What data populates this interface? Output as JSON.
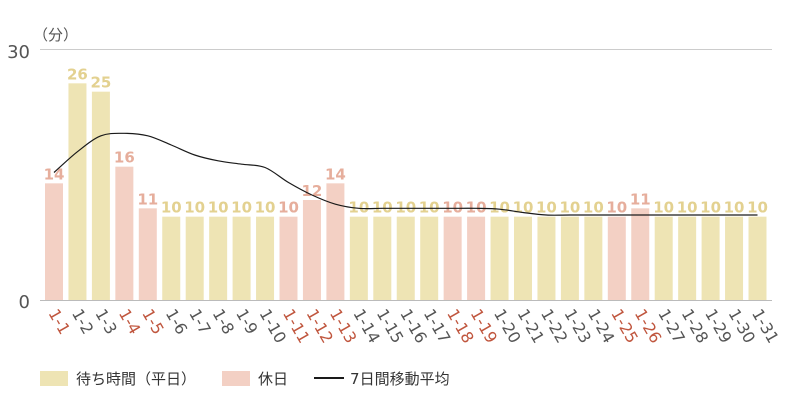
{
  "chart_data": {
    "type": "bar",
    "unit_label": "（分）",
    "ylim": [
      0,
      30
    ],
    "yticks": [
      0,
      30
    ],
    "grid": true,
    "categories": [
      "1-1",
      "1-2",
      "1-3",
      "1-4",
      "1-5",
      "1-6",
      "1-7",
      "1-8",
      "1-9",
      "1-10",
      "1-11",
      "1-12",
      "1-13",
      "1-14",
      "1-15",
      "1-16",
      "1-17",
      "1-18",
      "1-19",
      "1-20",
      "1-21",
      "1-22",
      "1-23",
      "1-24",
      "1-25",
      "1-26",
      "1-27",
      "1-28",
      "1-29",
      "1-30",
      "1-31"
    ],
    "values": [
      14,
      26,
      25,
      16,
      11,
      10,
      10,
      10,
      10,
      10,
      10,
      12,
      14,
      10,
      10,
      10,
      10,
      10,
      10,
      10,
      10,
      10,
      10,
      10,
      10,
      11,
      10,
      10,
      10,
      10,
      10
    ],
    "holiday": [
      true,
      false,
      false,
      true,
      true,
      false,
      false,
      false,
      false,
      false,
      true,
      true,
      true,
      false,
      false,
      false,
      false,
      true,
      true,
      false,
      false,
      false,
      false,
      false,
      true,
      true,
      false,
      false,
      false,
      false,
      false
    ],
    "moving_average": [
      15.3,
      17.8,
      19.7,
      20.0,
      19.7,
      18.6,
      17.4,
      16.7,
      16.3,
      15.9,
      14.1,
      12.6,
      11.5,
      11.0,
      11.0,
      11.0,
      11.0,
      11.0,
      11.0,
      10.9,
      10.5,
      10.2,
      10.2,
      10.2,
      10.2,
      10.2,
      10.2,
      10.2,
      10.2,
      10.2,
      10.2
    ],
    "colors": {
      "weekday_bar": "#EEE4B4",
      "holiday_bar": "#F3D0C4",
      "weekday_label": "#E3D190",
      "holiday_label": "#E6AE9C",
      "weekday_tick": "#555555",
      "holiday_tick": "#C0563E",
      "line": "#1a1a1a",
      "grid": "#cccccc"
    }
  },
  "legend": {
    "weekday": "待ち時間（平日）",
    "holiday": "休日",
    "average": "7日間移動平均"
  }
}
